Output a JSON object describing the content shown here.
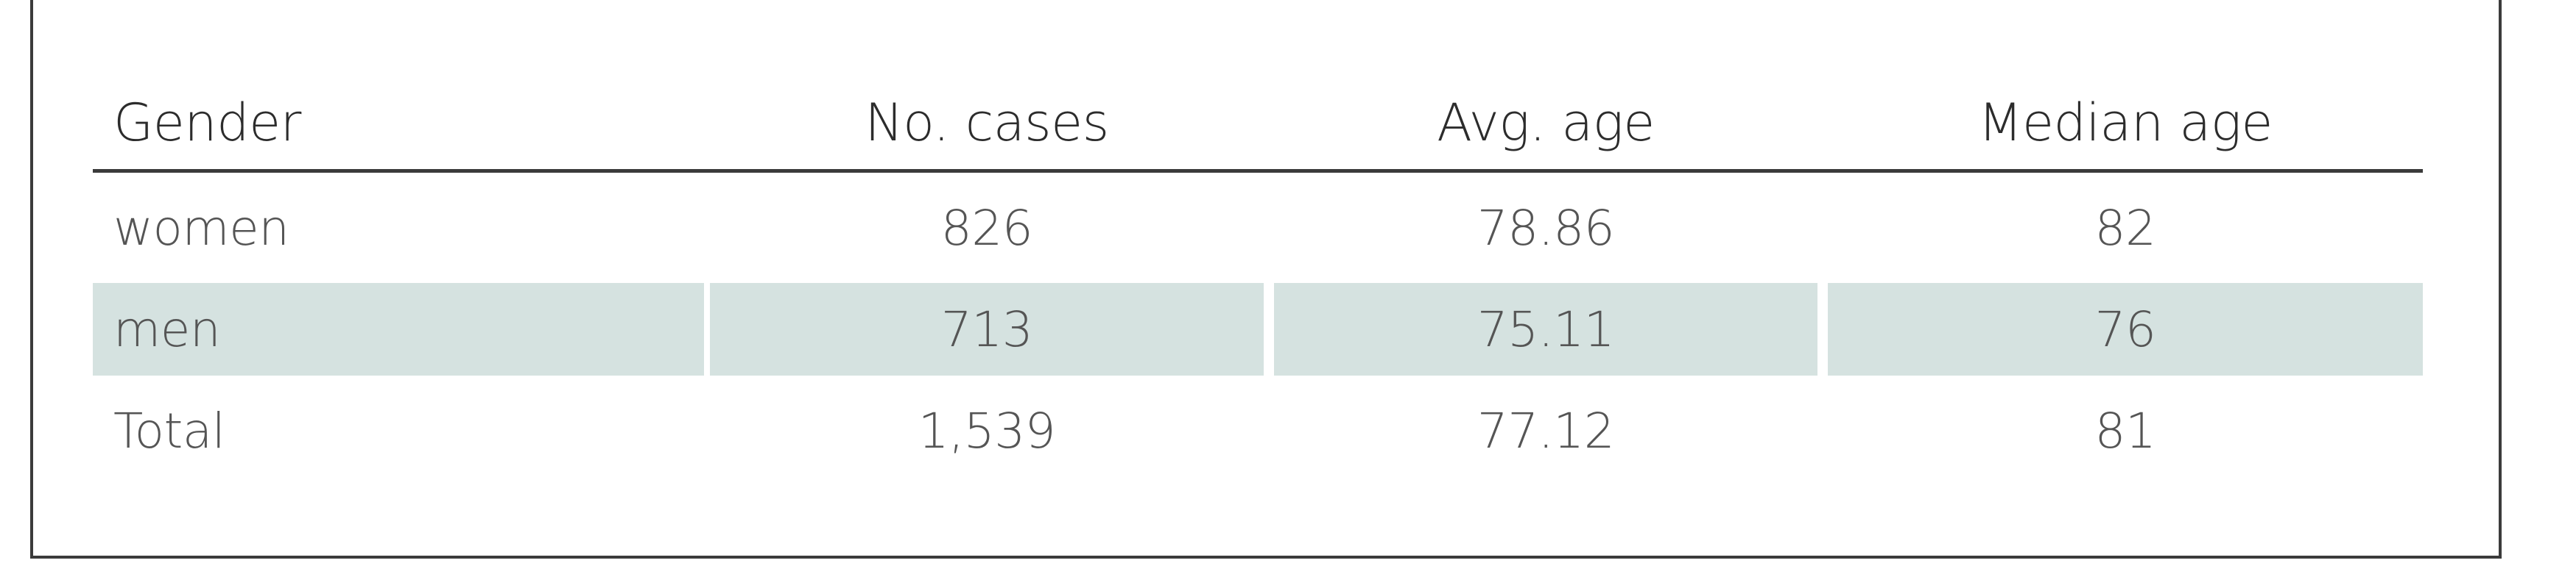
{
  "table": {
    "headers": [
      "Gender",
      "No. cases",
      "Avg. age",
      "Median age"
    ],
    "rows": [
      [
        "women",
        "826",
        "78.86",
        "82"
      ],
      [
        "men",
        "713",
        "75.11",
        "76"
      ],
      [
        "Total",
        "1,539",
        "77.12",
        "81"
      ]
    ],
    "shaded_row_index": 1,
    "shade_color": "#d5e2e0",
    "rule_color": "#3b3b3b"
  }
}
